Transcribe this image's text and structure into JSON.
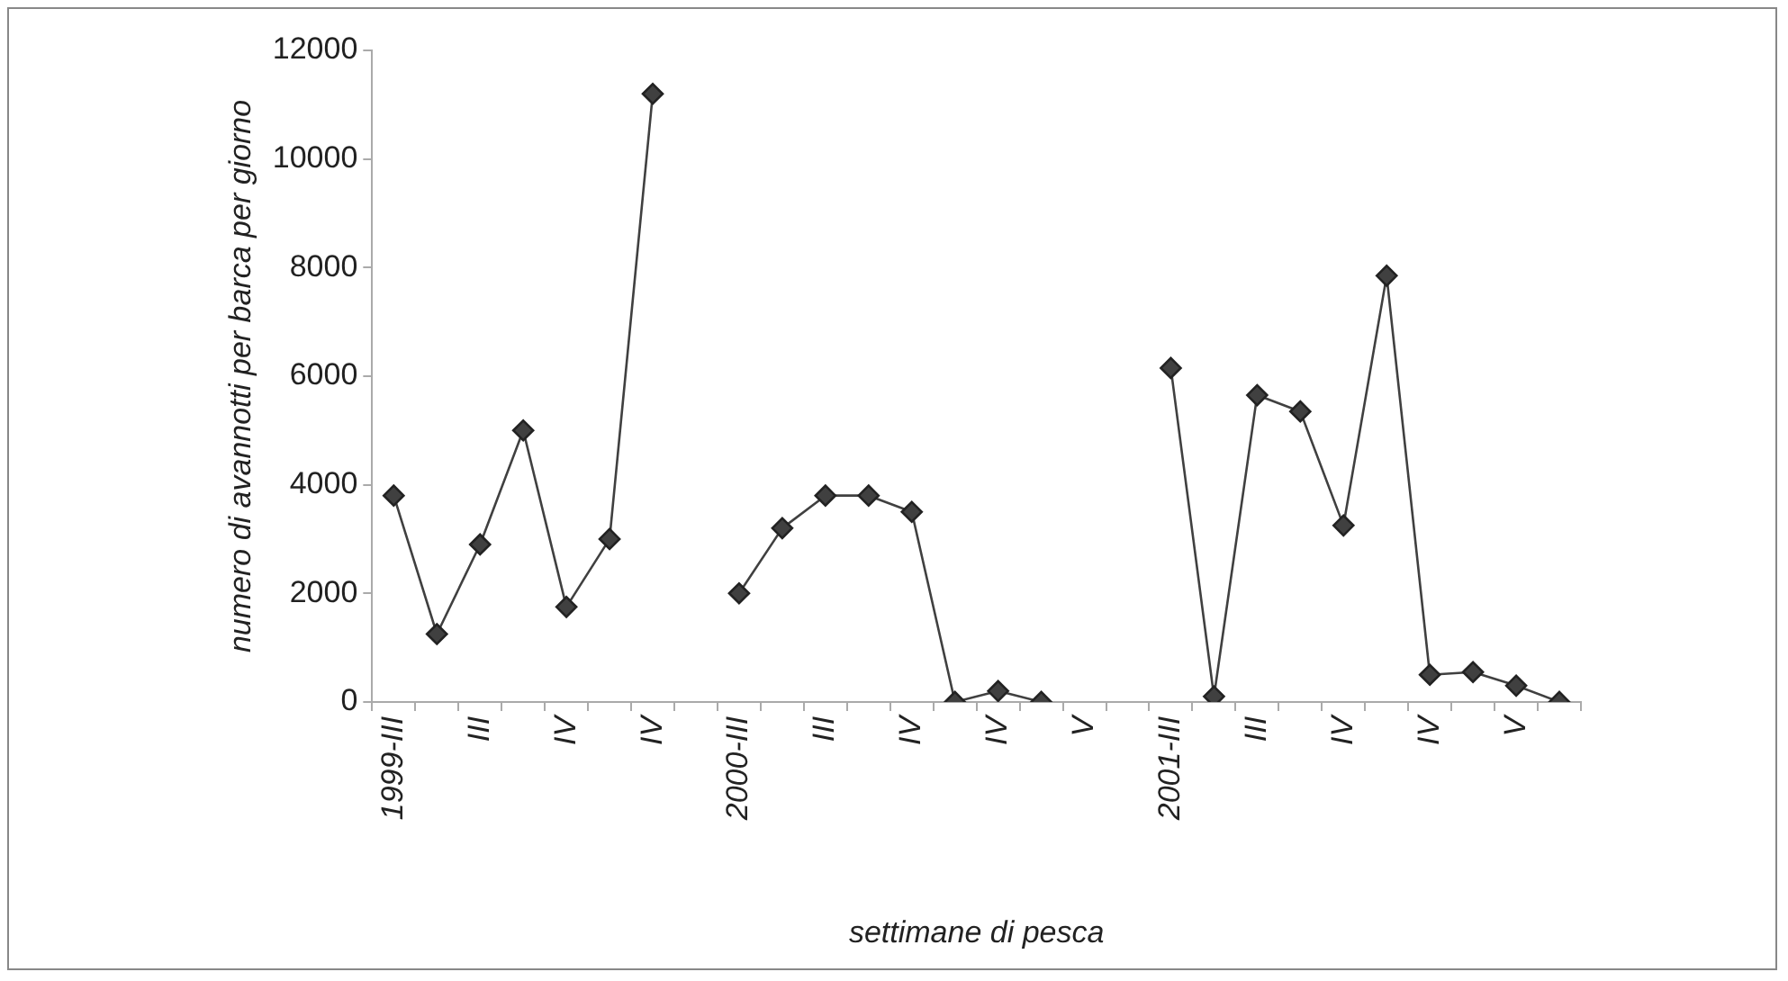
{
  "chart_data": {
    "type": "line",
    "xlabel": "settimane di pesca",
    "ylabel": "numero di avannotti per barca per giorno",
    "categories": [
      "1999-III",
      null,
      "III",
      null,
      "IV",
      null,
      "IV",
      null,
      "2000-III",
      null,
      "III",
      null,
      "IV",
      null,
      "IV",
      null,
      "V",
      null,
      "2001-III",
      null,
      "III",
      null,
      "IV",
      null,
      "IV",
      null,
      "V",
      null
    ],
    "series": [
      {
        "color": "#404040",
        "values": [
          3800,
          1250,
          2900,
          5000,
          1750,
          3000,
          11200,
          null,
          2000,
          3200,
          3800,
          3800,
          3500,
          0,
          200,
          0,
          null,
          null,
          6150,
          100,
          5650,
          5350,
          3250,
          7850,
          500,
          550,
          300,
          0
        ]
      }
    ],
    "ylim": [
      0,
      12000
    ],
    "yticks": [
      0,
      2000,
      4000,
      6000,
      8000,
      10000,
      12000
    ],
    "grid": false,
    "legend": false,
    "marker": "diamond",
    "line_style": "solid"
  }
}
